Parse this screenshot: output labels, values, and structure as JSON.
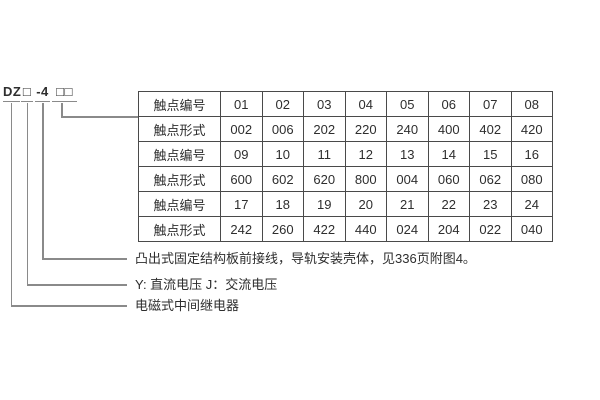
{
  "model": {
    "full": "DZ□-4□□",
    "segments": [
      {
        "label": "DZ"
      },
      {
        "label": "□"
      },
      {
        "label": "-4"
      },
      {
        "label": "□□"
      }
    ]
  },
  "table": {
    "row_headers": [
      "触点编号",
      "触点形式"
    ],
    "rows": [
      {
        "header": "触点编号",
        "cells": [
          "01",
          "02",
          "03",
          "04",
          "05",
          "06",
          "07",
          "08"
        ]
      },
      {
        "header": "触点形式",
        "cells": [
          "002",
          "006",
          "202",
          "220",
          "240",
          "400",
          "402",
          "420"
        ]
      },
      {
        "header": "触点编号",
        "cells": [
          "09",
          "10",
          "11",
          "12",
          "13",
          "14",
          "15",
          "16"
        ]
      },
      {
        "header": "触点形式",
        "cells": [
          "600",
          "602",
          "620",
          "800",
          "004",
          "060",
          "062",
          "080"
        ]
      },
      {
        "header": "触点编号",
        "cells": [
          "17",
          "18",
          "19",
          "20",
          "21",
          "22",
          "23",
          "24"
        ]
      },
      {
        "header": "触点形式",
        "cells": [
          "242",
          "260",
          "422",
          "440",
          "024",
          "204",
          "022",
          "040"
        ]
      }
    ]
  },
  "callouts": [
    {
      "text": "凸出式固定结构板前接线，导轨安装壳体，见336页附图4。"
    },
    {
      "text": "Y: 直流电压  J：交流电压"
    },
    {
      "text": "电磁式中间继电器"
    }
  ],
  "colors": {
    "background": "#ffffff",
    "text": "#2e2e2e",
    "table_border": "#4a4a4a",
    "connector_line": "#8a8a8a"
  }
}
